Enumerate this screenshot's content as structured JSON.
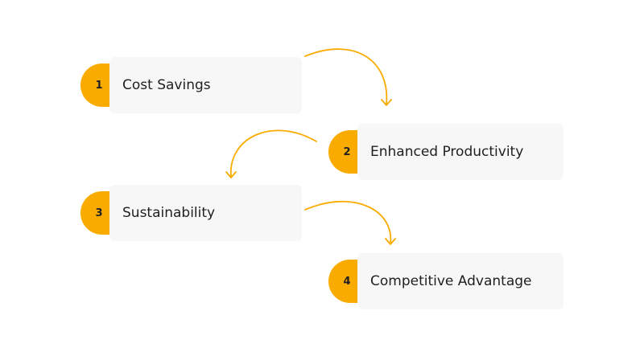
{
  "diagram": {
    "accent_color": "#f9ab00",
    "card_color": "#f7f7f7",
    "steps": [
      {
        "number": "1",
        "label": "Cost Savings"
      },
      {
        "number": "2",
        "label": "Enhanced Productivity"
      },
      {
        "number": "3",
        "label": "Sustainability"
      },
      {
        "number": "4",
        "label": "Competitive Advantage"
      }
    ],
    "connectors": [
      {
        "from": "1",
        "to": "2"
      },
      {
        "from": "2",
        "to": "3"
      },
      {
        "from": "3",
        "to": "4"
      }
    ]
  }
}
